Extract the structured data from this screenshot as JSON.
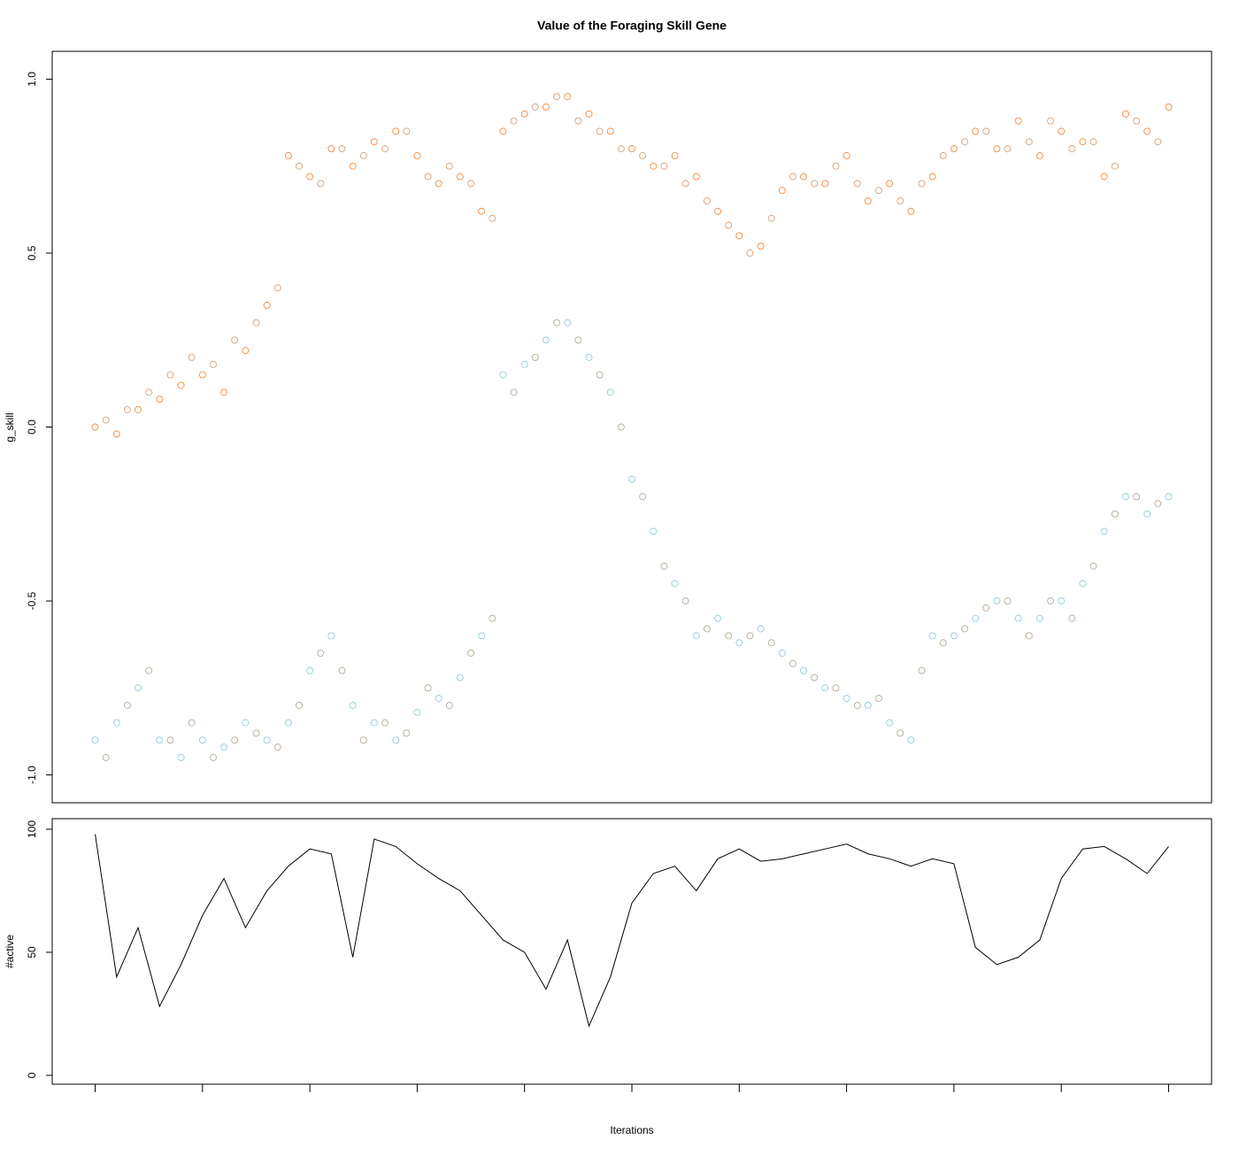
{
  "chart_data": [
    {
      "type": "scatter",
      "title": "Value of the Foraging Skill Gene",
      "y_label": "g_skill",
      "xlim": [
        -4,
        104
      ],
      "ylim": [
        -1.08,
        1.08
      ],
      "yticks": [
        {
          "value": -1,
          "label": "-1.0"
        },
        {
          "value": -0.5,
          "label": "-0.5"
        },
        {
          "value": 0,
          "label": "0.0"
        },
        {
          "value": 0.5,
          "label": "0.5"
        },
        {
          "value": 1,
          "label": "1.0"
        }
      ],
      "series": [
        {
          "color": "#f8802e",
          "x": [
            0,
            2,
            4,
            6,
            8,
            10,
            12,
            14,
            16,
            18,
            20,
            22,
            24,
            26,
            28,
            30,
            32,
            34,
            36,
            38,
            40,
            42,
            44,
            46,
            48,
            50,
            52,
            54,
            56,
            58,
            60,
            62,
            64,
            66,
            68,
            70,
            72,
            74,
            76,
            78,
            80,
            82,
            84,
            86,
            88,
            90,
            92,
            94,
            96,
            98,
            100
          ],
          "y": [
            0.0,
            -0.02,
            0.05,
            0.08,
            0.12,
            0.15,
            0.1,
            0.22,
            0.35,
            0.78,
            0.72,
            0.8,
            0.75,
            0.82,
            0.85,
            0.78,
            0.7,
            0.72,
            0.62,
            0.85,
            0.9,
            0.92,
            0.95,
            0.9,
            0.85,
            0.8,
            0.75,
            0.78,
            0.72,
            0.62,
            0.55,
            0.52,
            0.68,
            0.72,
            0.7,
            0.78,
            0.65,
            0.7,
            0.62,
            0.72,
            0.8,
            0.85,
            0.8,
            0.88,
            0.78,
            0.85,
            0.82,
            0.72,
            0.9,
            0.85,
            0.92
          ]
        },
        {
          "color": "#d49a72",
          "x": [
            1,
            3,
            5,
            7,
            9,
            11,
            13,
            15,
            17,
            19,
            21,
            23,
            25,
            27,
            29,
            31,
            33,
            35,
            37,
            39,
            41,
            43,
            45,
            47,
            49,
            51,
            53,
            55,
            57,
            59,
            61,
            63,
            65,
            67,
            69,
            71,
            73,
            75,
            77,
            79,
            81,
            83,
            85,
            87,
            89,
            91,
            93,
            95,
            97,
            99
          ],
          "y": [
            0.02,
            0.05,
            0.1,
            0.15,
            0.2,
            0.18,
            0.25,
            0.3,
            0.4,
            0.75,
            0.7,
            0.8,
            0.78,
            0.8,
            0.85,
            0.72,
            0.75,
            0.7,
            0.6,
            0.88,
            0.92,
            0.95,
            0.88,
            0.85,
            0.8,
            0.78,
            0.75,
            0.7,
            0.65,
            0.58,
            0.5,
            0.6,
            0.72,
            0.7,
            0.75,
            0.7,
            0.68,
            0.65,
            0.7,
            0.78,
            0.82,
            0.85,
            0.8,
            0.82,
            0.88,
            0.8,
            0.82,
            0.75,
            0.88,
            0.82
          ]
        },
        {
          "color": "#88c9d6",
          "x": [
            0,
            2,
            4,
            6,
            8,
            10,
            12,
            14,
            16,
            18,
            20,
            22,
            24,
            26,
            28,
            30,
            32,
            34,
            36,
            38,
            40,
            42,
            44,
            46,
            48,
            50,
            52,
            54,
            56,
            58,
            60,
            62,
            64,
            66,
            68,
            70,
            72,
            74,
            76,
            78,
            80,
            82,
            84,
            86,
            88,
            90,
            92,
            94,
            96,
            98,
            100
          ],
          "y": [
            -0.9,
            -0.85,
            -0.75,
            -0.9,
            -0.95,
            -0.9,
            -0.92,
            -0.85,
            -0.9,
            -0.85,
            -0.7,
            -0.6,
            -0.8,
            -0.85,
            -0.9,
            -0.82,
            -0.78,
            -0.72,
            -0.6,
            0.15,
            0.18,
            0.25,
            0.3,
            0.2,
            0.1,
            -0.15,
            -0.3,
            -0.45,
            -0.6,
            -0.55,
            -0.62,
            -0.58,
            -0.65,
            -0.7,
            -0.75,
            -0.78,
            -0.8,
            -0.85,
            -0.9,
            -0.6,
            -0.6,
            -0.55,
            -0.5,
            -0.55,
            -0.55,
            -0.5,
            -0.45,
            -0.3,
            -0.2,
            -0.25,
            -0.2
          ]
        },
        {
          "color": "#b0a68e",
          "x": [
            1,
            3,
            5,
            7,
            9,
            11,
            13,
            15,
            17,
            19,
            21,
            23,
            25,
            27,
            29,
            31,
            33,
            35,
            37,
            39,
            41,
            43,
            45,
            47,
            49,
            51,
            53,
            55,
            57,
            59,
            61,
            63,
            65,
            67,
            69,
            71,
            73,
            75,
            77,
            79,
            81,
            83,
            85,
            87,
            89,
            91,
            93,
            95,
            97,
            99
          ],
          "y": [
            -0.95,
            -0.8,
            -0.7,
            -0.9,
            -0.85,
            -0.95,
            -0.9,
            -0.88,
            -0.92,
            -0.8,
            -0.65,
            -0.7,
            -0.9,
            -0.85,
            -0.88,
            -0.75,
            -0.8,
            -0.65,
            -0.55,
            0.1,
            0.2,
            0.3,
            0.25,
            0.15,
            0.0,
            -0.2,
            -0.4,
            -0.5,
            -0.58,
            -0.6,
            -0.6,
            -0.62,
            -0.68,
            -0.72,
            -0.75,
            -0.8,
            -0.78,
            -0.88,
            -0.7,
            -0.62,
            -0.58,
            -0.52,
            -0.5,
            -0.6,
            -0.5,
            -0.55,
            -0.4,
            -0.25,
            -0.2,
            -0.22
          ]
        }
      ]
    },
    {
      "type": "line",
      "y_label": "#active",
      "x_label": "Iterations",
      "color": "#000000",
      "xlim": [
        -4,
        104
      ],
      "ylim": [
        -3.6,
        104.3
      ],
      "xticks": [
        0,
        10,
        20,
        30,
        40,
        50,
        60,
        70,
        80,
        90,
        100
      ],
      "yticks": [
        0,
        50,
        100
      ],
      "x": [
        0,
        2,
        4,
        6,
        8,
        10,
        12,
        14,
        16,
        18,
        20,
        22,
        24,
        26,
        28,
        30,
        32,
        34,
        36,
        38,
        40,
        42,
        44,
        46,
        48,
        50,
        52,
        54,
        56,
        58,
        60,
        62,
        64,
        66,
        68,
        70,
        72,
        74,
        76,
        78,
        80,
        82,
        84,
        86,
        88,
        90,
        92,
        94,
        96,
        98,
        100
      ],
      "values": [
        98,
        40,
        60,
        28,
        45,
        65,
        80,
        60,
        75,
        85,
        92,
        90,
        48,
        96,
        93,
        86,
        80,
        75,
        65,
        55,
        50,
        35,
        55,
        20,
        40,
        70,
        82,
        85,
        75,
        88,
        92,
        87,
        88,
        90,
        92,
        94,
        90,
        88,
        85,
        88,
        86,
        52,
        45,
        48,
        55,
        80,
        92,
        93,
        88,
        82,
        93
      ]
    }
  ]
}
